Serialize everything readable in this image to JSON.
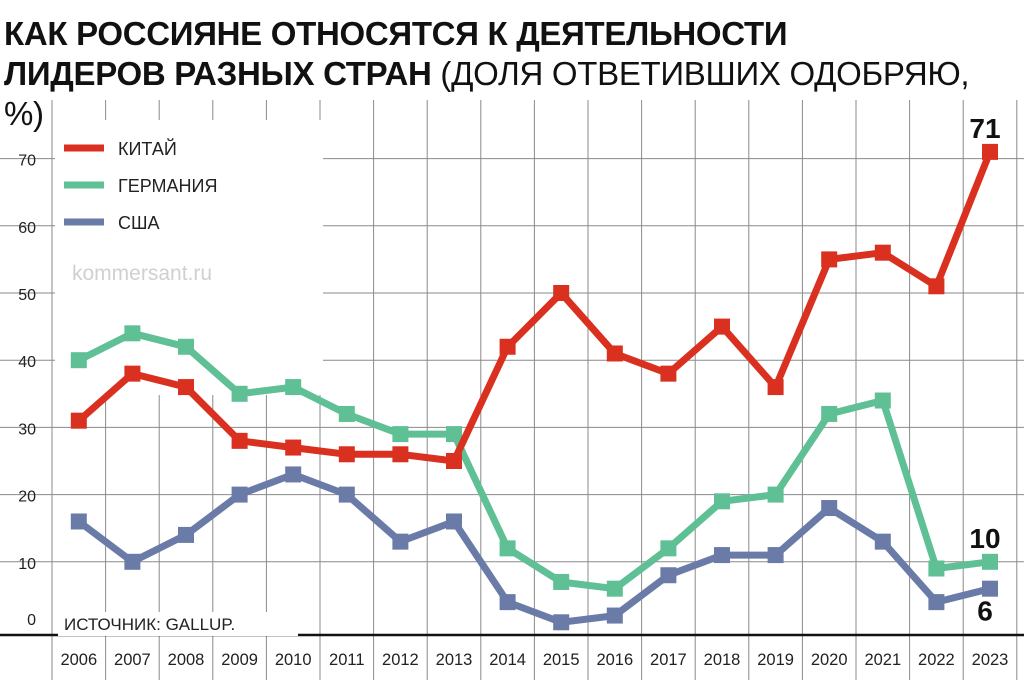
{
  "title": {
    "line1": "КАК РОССИЯНЕ ОТНОСЯТСЯ К ДЕЯТЕЛЬНОСТИ",
    "line2_bold": "ЛИДЕРОВ РАЗНЫХ СТРАН",
    "line2_light": " (ДОЛЯ ОТВЕТИВШИХ ОДОБРЯЮ, %)"
  },
  "source": "ИСТОЧНИК: GALLUP.",
  "watermark": "kommersant.ru",
  "chart_data": {
    "type": "line",
    "categories": [
      "2006",
      "2007",
      "2008",
      "2009",
      "2010",
      "2011",
      "2012",
      "2013",
      "2014",
      "2015",
      "2016",
      "2017",
      "2018",
      "2019",
      "2020",
      "2021",
      "2022",
      "2023"
    ],
    "yticks": [
      0,
      10,
      20,
      30,
      40,
      50,
      60,
      70
    ],
    "ylim": [
      0,
      75
    ],
    "grid": true,
    "legend_position": "top-left",
    "series": [
      {
        "name": "КИТАЙ",
        "color": "#d9301f",
        "values": [
          31,
          38,
          36,
          28,
          27,
          26,
          26,
          25,
          42,
          50,
          41,
          38,
          45,
          36,
          55,
          56,
          51,
          71
        ],
        "end_label": "71"
      },
      {
        "name": "ГЕРМАНИЯ",
        "color": "#5fbf95",
        "values": [
          40,
          44,
          42,
          35,
          36,
          32,
          29,
          29,
          12,
          7,
          6,
          12,
          19,
          20,
          32,
          34,
          9,
          10
        ],
        "end_label": "10"
      },
      {
        "name": "США",
        "color": "#6a7ba8",
        "values": [
          16,
          10,
          14,
          20,
          23,
          20,
          13,
          16,
          4,
          1,
          2,
          8,
          11,
          11,
          18,
          13,
          4,
          6
        ],
        "end_label": "6"
      }
    ]
  }
}
